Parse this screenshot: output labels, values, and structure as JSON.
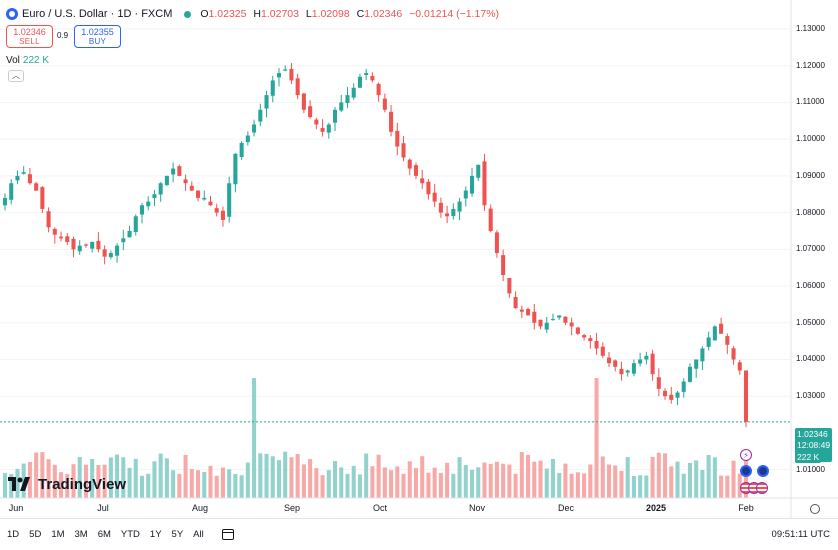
{
  "legend": {
    "title": "Euro / U.S. Dollar · 1D · FXCM",
    "open_label": "O",
    "open": "1.02325",
    "high_label": "H",
    "high": "1.02703",
    "low_label": "L",
    "low": "1.02098",
    "close_label": "C",
    "close": "1.02346",
    "change": "−0.01214 (−1.17%)"
  },
  "trade": {
    "sell_price": "1.02346",
    "sell_label": "SELL",
    "spread": "0.9",
    "buy_price": "1.02355",
    "buy_label": "BUY"
  },
  "volume": {
    "label": "Vol",
    "value": "222 K"
  },
  "price_axis": {
    "labels": [
      "1.13000",
      "1.12000",
      "1.11000",
      "1.10000",
      "1.09000",
      "1.08000",
      "1.07000",
      "1.06000",
      "1.05000",
      "1.04000",
      "1.03000",
      "1.01000"
    ]
  },
  "current": {
    "price": "1.02346",
    "countdown": "12:08:49",
    "volume": "222 K"
  },
  "time_axis": {
    "labels": [
      {
        "text": "Jun",
        "bold": false
      },
      {
        "text": "Jul",
        "bold": false
      },
      {
        "text": "Aug",
        "bold": false
      },
      {
        "text": "Sep",
        "bold": false
      },
      {
        "text": "Oct",
        "bold": false
      },
      {
        "text": "Nov",
        "bold": false
      },
      {
        "text": "Dec",
        "bold": false
      },
      {
        "text": "2025",
        "bold": true
      },
      {
        "text": "Feb",
        "bold": false
      }
    ]
  },
  "toolbar": {
    "timeframes": [
      "1D",
      "5D",
      "1M",
      "3M",
      "6M",
      "YTD",
      "1Y",
      "5Y",
      "All"
    ],
    "clock": "09:51:11 UTC"
  },
  "brand": {
    "name": "TradingView"
  },
  "colors": {
    "up": "#26a69a",
    "down": "#ef5350",
    "up_vol": "#92d2cc",
    "down_vol": "#f7a9a7",
    "accent": "#2962ff"
  },
  "chart_data": {
    "type": "candlestick",
    "symbol": "EURUSD",
    "timeframe": "1D",
    "ylim": [
      1.005,
      1.133
    ],
    "y_ticks": [
      1.13,
      1.12,
      1.11,
      1.1,
      1.09,
      1.08,
      1.07,
      1.06,
      1.05,
      1.04,
      1.03,
      1.01
    ],
    "x_months": [
      "Jun",
      "Jul",
      "Aug",
      "Sep",
      "Oct",
      "Nov",
      "Dec",
      "2025",
      "Feb"
    ],
    "close_path": [
      1.084,
      1.088,
      1.09,
      1.091,
      1.088,
      1.086,
      1.081,
      1.076,
      1.074,
      1.073,
      1.072,
      1.07,
      1.071,
      1.071,
      1.072,
      1.07,
      1.068,
      1.069,
      1.071,
      1.073,
      1.075,
      1.079,
      1.082,
      1.083,
      1.085,
      1.088,
      1.09,
      1.092,
      1.09,
      1.088,
      1.086,
      1.084,
      1.084,
      1.082,
      1.08,
      1.078,
      1.088,
      1.096,
      1.099,
      1.101,
      1.104,
      1.108,
      1.112,
      1.116,
      1.118,
      1.119,
      1.116,
      1.112,
      1.108,
      1.106,
      1.104,
      1.102,
      1.104,
      1.108,
      1.11,
      1.112,
      1.114,
      1.117,
      1.118,
      1.116,
      1.112,
      1.108,
      1.102,
      1.098,
      1.095,
      1.092,
      1.09,
      1.088,
      1.085,
      1.083,
      1.08,
      1.079,
      1.081,
      1.083,
      1.086,
      1.09,
      1.093,
      1.082,
      1.075,
      1.069,
      1.063,
      1.058,
      1.054,
      1.053,
      1.052,
      1.05,
      1.049,
      1.05,
      1.051,
      1.052,
      1.05,
      1.049,
      1.047,
      1.046,
      1.045,
      1.043,
      1.041,
      1.039,
      1.038,
      1.036,
      1.037,
      1.039,
      1.04,
      1.041,
      1.036,
      1.032,
      1.03,
      1.029,
      1.031,
      1.034,
      1.038,
      1.04,
      1.043,
      1.046,
      1.049,
      1.047,
      1.044,
      1.04,
      1.037,
      1.023
    ],
    "volume_note": "Volume histogram bars colored by candle direction"
  }
}
